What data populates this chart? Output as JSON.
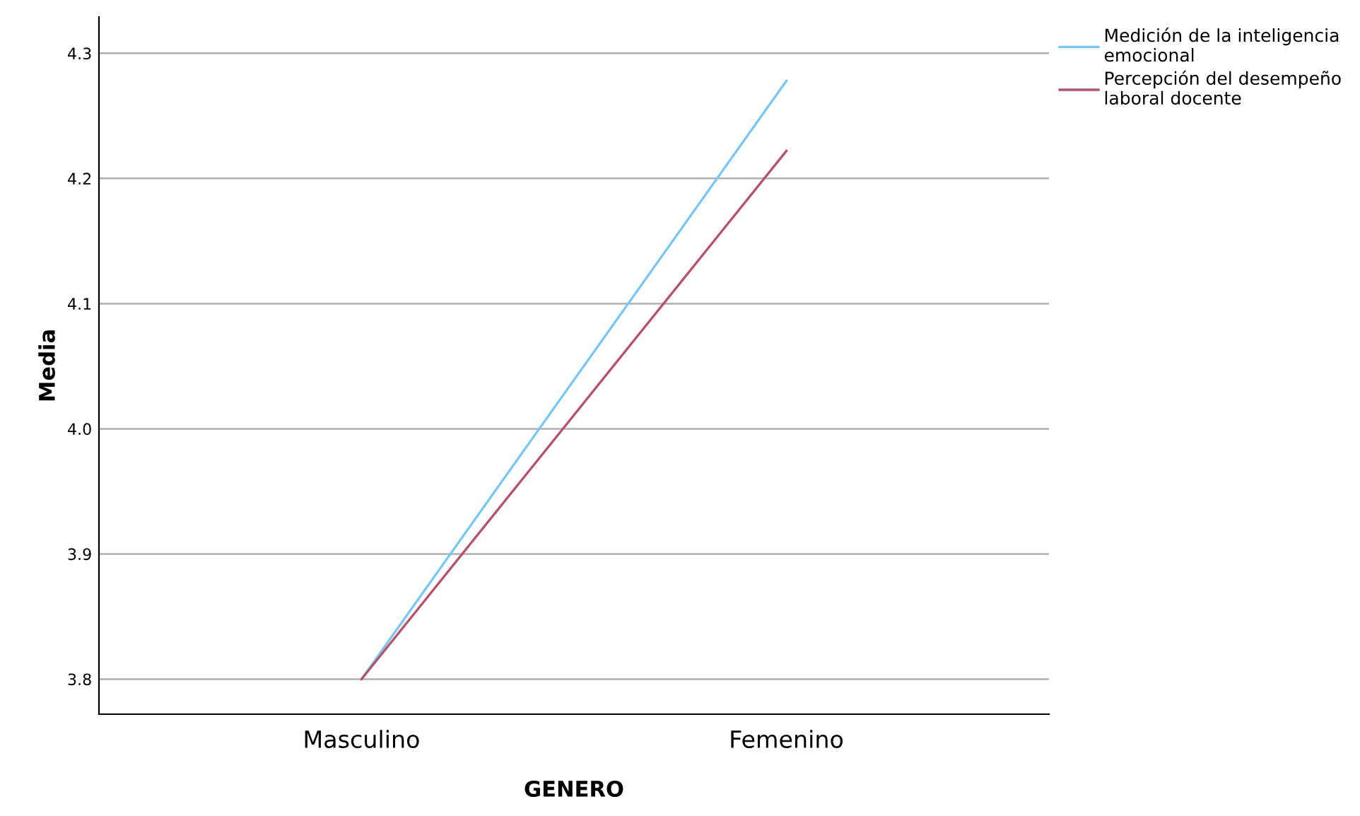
{
  "chart_data": {
    "type": "line",
    "xlabel": "GENERO",
    "ylabel": "Media",
    "categories": [
      "Masculino",
      "Femenino"
    ],
    "series": [
      {
        "name": "Medición de la inteligencia emocional",
        "color": "#79c7f5",
        "values": [
          3.8,
          4.278
        ]
      },
      {
        "name": "Percepción del desempeño laboral docente",
        "color": "#b5506d",
        "values": [
          3.8,
          4.222
        ]
      }
    ],
    "ylim": [
      3.772,
      4.329
    ],
    "yticks": [
      3.8,
      3.9,
      {
        "value": 4.0,
        "label": "4.0"
      },
      4.1,
      4.2,
      4.3
    ],
    "grid": "y",
    "legend": "top right",
    "marker": "none",
    "line_style": "solid"
  }
}
